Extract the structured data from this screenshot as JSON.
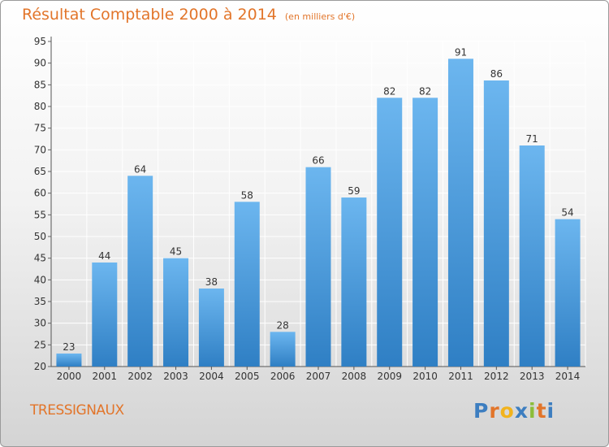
{
  "title": {
    "main": "Résultat Comptable 2000 à 2014",
    "unit": "(en milliers d'€)"
  },
  "commune": "TRESSIGNAUX",
  "brand": {
    "name": "Proxiti",
    "letters": [
      "P",
      "r",
      "o",
      "x",
      "i",
      "t",
      "i"
    ],
    "colors": [
      "#3d7ec0",
      "#e2752a",
      "#f2b31d",
      "#3d7ec0",
      "#8cbd3a",
      "#e2752a",
      "#3d7ec0"
    ]
  },
  "colors": {
    "bar_light": "#6cb6ef",
    "bar_dark": "#2f7fc4",
    "title": "#e2752a",
    "grid": "#ffffff"
  },
  "chart_data": {
    "type": "bar",
    "title": "Résultat Comptable 2000 à 2014",
    "ylabel": "en milliers d'€",
    "xlabel": "",
    "categories": [
      "2000",
      "2001",
      "2002",
      "2003",
      "2004",
      "2005",
      "2006",
      "2007",
      "2008",
      "2009",
      "2010",
      "2011",
      "2012",
      "2013",
      "2014"
    ],
    "values": [
      23,
      44,
      64,
      45,
      38,
      58,
      28,
      66,
      59,
      82,
      82,
      91,
      86,
      71,
      54
    ],
    "ylim": [
      20,
      95
    ],
    "yticks": [
      20,
      25,
      30,
      35,
      40,
      45,
      50,
      55,
      60,
      65,
      70,
      75,
      80,
      85,
      90,
      95
    ],
    "grid": true
  }
}
